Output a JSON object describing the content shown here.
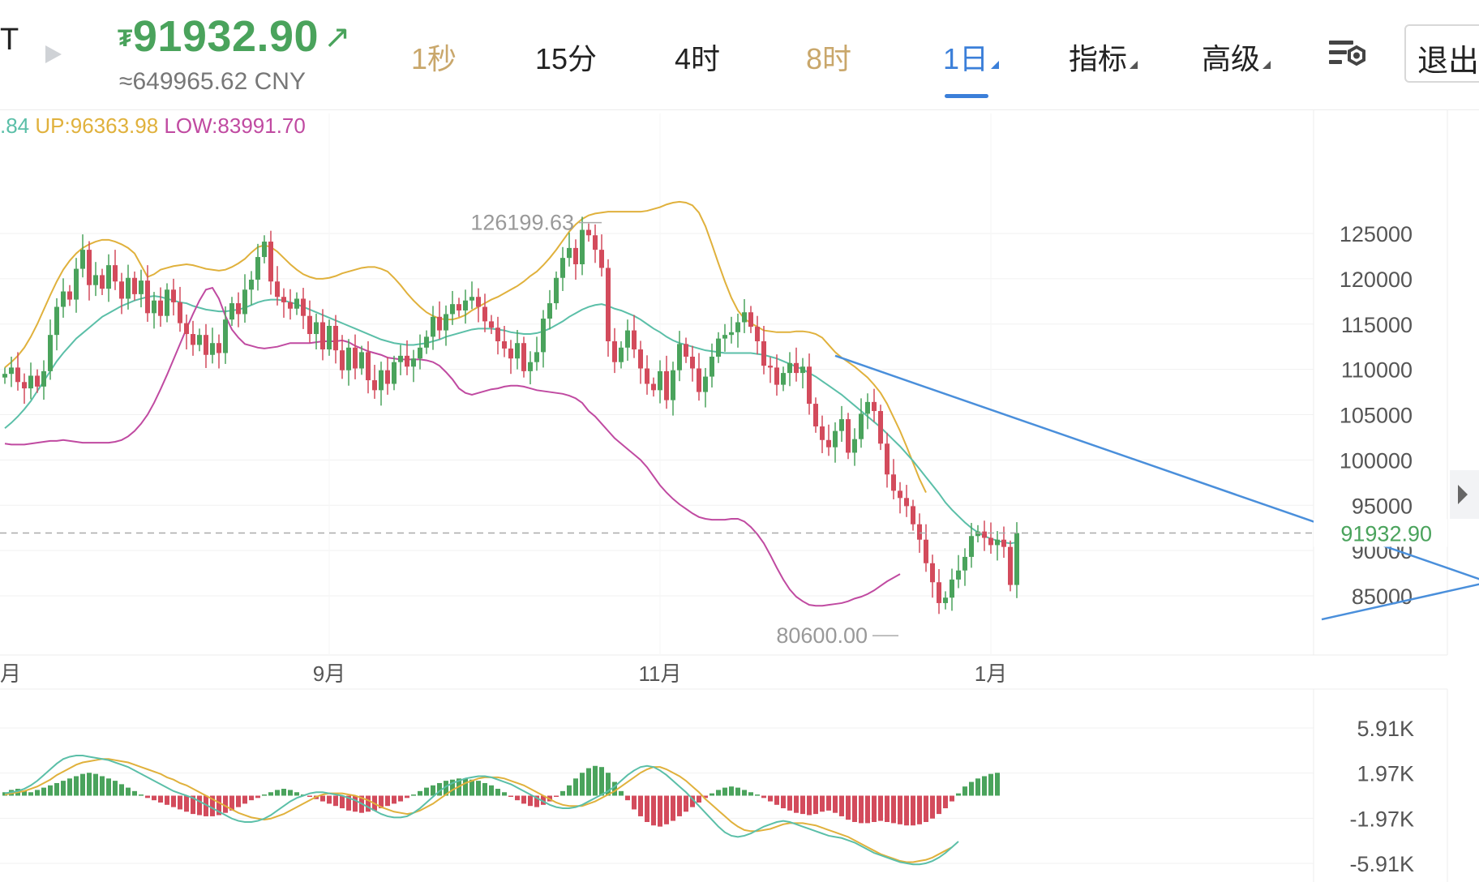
{
  "header": {
    "symbol_fragment": "T",
    "price": "91932.90",
    "price_currency_glyph": "₮",
    "price_arrow": "↗",
    "price_cny": "≈649965.62 CNY",
    "up_color": "#4aa35c",
    "down_color": "#d34b5c",
    "accent": "#3b7fd9"
  },
  "timeframes": [
    {
      "label": "1秒",
      "state": "dim"
    },
    {
      "label": "15分",
      "state": "normal"
    },
    {
      "label": "4时",
      "state": "normal"
    },
    {
      "label": "8时",
      "state": "dim"
    },
    {
      "label": "1日",
      "state": "active"
    }
  ],
  "menus": {
    "indicators": "指标",
    "advanced": "高级",
    "exit": "退出"
  },
  "legend": {
    "mb": ".84",
    "up": "UP:96363.98",
    "low": "LOW:83991.70"
  },
  "chart_data": [
    {
      "type": "candlestick",
      "title": "",
      "x_tick_labels": [
        "9月",
        "11月",
        "1月"
      ],
      "y_tick_labels": [
        "125000",
        "120000",
        "115000",
        "110000",
        "105000",
        "100000",
        "95000",
        "90000",
        "85000"
      ],
      "ylim": [
        80000,
        130000
      ],
      "grid": true,
      "current_price": 91932.9,
      "current_price_label": "91932.90",
      "high_annotation": {
        "label": "126199.63",
        "value": 126199.63
      },
      "low_annotation": {
        "label": "80600.00",
        "value": 80600.0
      },
      "closes": [
        109500,
        110200,
        108600,
        107900,
        109300,
        108100,
        109800,
        113800,
        116900,
        118600,
        117700,
        121100,
        123200,
        119300,
        120400,
        118900,
        121500,
        119700,
        117800,
        120100,
        118300,
        119800,
        116200,
        117600,
        115900,
        118800,
        117400,
        115100,
        113900,
        112700,
        113800,
        111600,
        112900,
        111800,
        115500,
        117300,
        116100,
        118800,
        119900,
        122400,
        124100,
        119700,
        118000,
        117400,
        116700,
        117800,
        115900,
        113900,
        115200,
        112200,
        114800,
        112100,
        109900,
        112400,
        110100,
        111900,
        108800,
        107700,
        109900,
        108400,
        110800,
        111500,
        110300,
        111200,
        112400,
        113600,
        115800,
        114300,
        116100,
        117200,
        116500,
        117600,
        118000,
        116900,
        115300,
        114600,
        113100,
        112300,
        111200,
        112900,
        109800,
        110800,
        111900,
        115600,
        117300,
        120100,
        122300,
        123400,
        121600,
        125400,
        124800,
        123200,
        121200,
        113100,
        110800,
        112400,
        114300,
        112200,
        110100,
        108400,
        107700,
        109800,
        106600,
        109900,
        112800,
        111400,
        110100,
        107500,
        109200,
        111400,
        113400,
        113800,
        114100,
        115200,
        116300,
        114700,
        113100,
        110400,
        110200,
        108300,
        109600,
        110700,
        109600,
        110300,
        106200,
        103700,
        102200,
        101400,
        103200,
        104500,
        100800,
        102300,
        105100,
        106400,
        105400,
        101800,
        98400,
        96600,
        95800,
        94900,
        92900,
        91200,
        88600,
        86500,
        84200,
        84800,
        86800,
        87800,
        89300,
        91600,
        92100,
        91400,
        90600,
        91200,
        90400,
        86200,
        91932.9
      ],
      "boll_mb": [
        103500,
        104100,
        104800,
        105600,
        106500,
        107600,
        108700,
        109800,
        110900,
        111800,
        112600,
        113400,
        114000,
        114600,
        115200,
        115800,
        116200,
        116600,
        117000,
        117300,
        117600,
        117800,
        118000,
        118100,
        118000,
        117800,
        117600,
        117400,
        117300,
        117000,
        116800,
        116600,
        116500,
        116400,
        116400,
        116500,
        116600,
        116800,
        117100,
        117400,
        117600,
        117700,
        117700,
        117600,
        117400,
        117200,
        116900,
        116600,
        116300,
        116000,
        115700,
        115400,
        115100,
        114800,
        114500,
        114200,
        113900,
        113600,
        113300,
        113100,
        112900,
        112800,
        112700,
        112700,
        112800,
        112900,
        113100,
        113300,
        113600,
        113800,
        114000,
        114200,
        114400,
        114500,
        114500,
        114500,
        114400,
        114300,
        114100,
        114000,
        113900,
        113900,
        114000,
        114200,
        114500,
        114900,
        115300,
        115800,
        116200,
        116600,
        116900,
        117100,
        117200,
        117000,
        116700,
        116500,
        116200,
        115900,
        115500,
        115000,
        114500,
        114100,
        113600,
        113200,
        112900,
        112700,
        112500,
        112300,
        112100,
        112000,
        111900,
        111800,
        111800,
        111800,
        111800,
        111800,
        111700,
        111600,
        111400,
        111200,
        110900,
        110600,
        110300,
        110000,
        109600,
        109200,
        108700,
        108200,
        107700,
        107200,
        106600,
        106000,
        105400,
        104800,
        104200,
        103600,
        102900,
        102200,
        101500,
        100700,
        99900,
        99000,
        98100,
        97200,
        96300,
        95300,
        94500,
        93800,
        93100,
        92500,
        92000,
        91600,
        91300,
        91100,
        90900,
        90800,
        90900
      ],
      "boll_up": [
        110200,
        110800,
        111500,
        112400,
        113600,
        115000,
        116600,
        118200,
        119700,
        121000,
        122000,
        122800,
        123400,
        123800,
        124100,
        124300,
        124300,
        124100,
        123800,
        123400,
        122800,
        121500,
        120200,
        120500,
        121000,
        121200,
        121400,
        121500,
        121600,
        121500,
        121300,
        121100,
        121000,
        120900,
        121000,
        121300,
        121700,
        122200,
        122900,
        123500,
        123700,
        123500,
        123000,
        122300,
        121600,
        121000,
        120500,
        120200,
        120000,
        120000,
        120100,
        120300,
        120600,
        120800,
        121000,
        121200,
        121300,
        121300,
        121100,
        120800,
        120100,
        119300,
        118400,
        117600,
        116900,
        116300,
        115900,
        115600,
        115500,
        115500,
        115700,
        116000,
        116500,
        116900,
        117300,
        117700,
        118000,
        118400,
        118800,
        119200,
        119700,
        120300,
        120800,
        121500,
        122300,
        123200,
        124200,
        125200,
        126000,
        126600,
        127000,
        127200,
        127300,
        127400,
        127400,
        127400,
        127400,
        127400,
        127400,
        127500,
        127700,
        127900,
        128200,
        128400,
        128500,
        128400,
        128100,
        127300,
        125800,
        123800,
        121700,
        119700,
        117900,
        116500,
        115600,
        115100,
        114700,
        114300,
        114200,
        114100,
        114100,
        114100,
        114200,
        114200,
        114100,
        113900,
        113500,
        112700,
        111900,
        111300,
        110800,
        110300,
        109700,
        109100,
        108300,
        107400,
        106200,
        104700,
        103200,
        101500,
        99700,
        97900,
        96400
      ],
      "boll_low": [
        101800,
        101700,
        101700,
        101700,
        101800,
        101900,
        102000,
        102100,
        102100,
        102200,
        102100,
        102000,
        101900,
        101900,
        101900,
        101900,
        101900,
        102000,
        102200,
        102600,
        103200,
        104000,
        105000,
        106300,
        107800,
        109400,
        111100,
        112800,
        114500,
        116100,
        117600,
        118800,
        119000,
        117800,
        115900,
        114400,
        113500,
        112800,
        112600,
        112400,
        112300,
        112400,
        112500,
        112700,
        112900,
        112900,
        112900,
        112900,
        113000,
        113100,
        113100,
        113100,
        113200,
        113000,
        112600,
        112300,
        112000,
        111800,
        111600,
        111300,
        111200,
        111100,
        111100,
        111100,
        111100,
        111000,
        110800,
        110400,
        109700,
        108900,
        107900,
        107400,
        107200,
        107400,
        107600,
        107800,
        107900,
        108100,
        108200,
        108200,
        108100,
        107900,
        107700,
        107600,
        107500,
        107400,
        107300,
        107100,
        106800,
        106300,
        105400,
        104800,
        104000,
        103200,
        102400,
        101800,
        101200,
        100600,
        100000,
        99200,
        98200,
        97200,
        96400,
        95700,
        95100,
        94600,
        94100,
        93700,
        93500,
        93400,
        93400,
        93400,
        93500,
        93500,
        93200,
        92600,
        91800,
        90800,
        89500,
        88100,
        86800,
        85700,
        84900,
        84400,
        84000,
        83900,
        83900,
        84000,
        84100,
        84200,
        84400,
        84700,
        84900,
        85200,
        85600,
        86100,
        86600,
        87000,
        87400
      ],
      "trendlines": [
        {
          "from": [
            128,
            111500
          ],
          "to": [
            240,
            83700
          ],
          "color": "#4a8fdb"
        },
        {
          "from": [
            203,
            82400
          ],
          "to": [
            290,
            96300
          ],
          "color": "#4a8fdb"
        },
        {
          "from": [
            236,
            90500
          ],
          "to": [
            247,
            96800
          ],
          "color": "#4a8fdb",
          "arrow": true
        }
      ]
    },
    {
      "type": "macd",
      "y_tick_labels": [
        "5.91K",
        "1.97K",
        "-1.97K",
        "-5.91K"
      ],
      "ylim": [
        -7000,
        7000
      ],
      "grid": true,
      "histogram": [
        300,
        500,
        600,
        400,
        300,
        500,
        700,
        900,
        1100,
        1300,
        1500,
        1700,
        1900,
        2000,
        1900,
        1700,
        1500,
        1300,
        1000,
        700,
        400,
        100,
        -200,
        -400,
        -600,
        -800,
        -1000,
        -1200,
        -1400,
        -1600,
        -1700,
        -1800,
        -1800,
        -1700,
        -1500,
        -1300,
        -1000,
        -700,
        -400,
        -200,
        100,
        300,
        500,
        600,
        500,
        300,
        100,
        -100,
        -300,
        -500,
        -700,
        -900,
        -1100,
        -1300,
        -1400,
        -1500,
        -1400,
        -1300,
        -1100,
        -900,
        -700,
        -500,
        -200,
        100,
        400,
        700,
        900,
        1100,
        1300,
        1400,
        1500,
        1500,
        1400,
        1300,
        1100,
        900,
        600,
        300,
        -100,
        -400,
        -700,
        -900,
        -1000,
        -800,
        -500,
        -100,
        400,
        900,
        1500,
        2000,
        2400,
        2600,
        2500,
        2000,
        1200,
        400,
        -400,
        -1200,
        -1800,
        -2300,
        -2600,
        -2700,
        -2500,
        -2200,
        -1800,
        -1400,
        -1000,
        -600,
        -200,
        200,
        500,
        700,
        800,
        700,
        500,
        300,
        100,
        -200,
        -500,
        -800,
        -1100,
        -1300,
        -1500,
        -1600,
        -1700,
        -1600,
        -1400,
        -1300,
        -1500,
        -1800,
        -2100,
        -2300,
        -2400,
        -2400,
        -2300,
        -2200,
        -2300,
        -2400,
        -2500,
        -2600,
        -2600,
        -2500,
        -2300,
        -2000,
        -1600,
        -1100,
        -500,
        200,
        800,
        1200,
        1500,
        1700,
        1900,
        2000
      ],
      "dif": [
        200,
        300,
        400,
        600,
        900,
        1300,
        1800,
        2300,
        2800,
        3200,
        3400,
        3500,
        3500,
        3400,
        3300,
        3200,
        3100,
        2900,
        2700,
        2500,
        2200,
        1900,
        1600,
        1300,
        1000,
        700,
        400,
        200,
        0,
        -200,
        -500,
        -800,
        -1100,
        -1400,
        -1700,
        -2000,
        -2200,
        -2300,
        -2300,
        -2200,
        -2000,
        -1700,
        -1300,
        -900,
        -500,
        -200,
        0,
        200,
        300,
        300,
        200,
        100,
        0,
        -200,
        -400,
        -700,
        -1000,
        -1300,
        -1600,
        -1800,
        -1900,
        -1900,
        -1800,
        -1500,
        -1100,
        -600,
        -100,
        400,
        800,
        1100,
        1300,
        1500,
        1600,
        1700,
        1700,
        1600,
        1400,
        1200,
        1000,
        700,
        400,
        100,
        -200,
        -500,
        -800,
        -1000,
        -1100,
        -1100,
        -1000,
        -800,
        -500,
        -200,
        100,
        400,
        800,
        1300,
        1800,
        2200,
        2500,
        2600,
        2500,
        2200,
        1800,
        1300,
        800,
        300,
        -300,
        -900,
        -1500,
        -2100,
        -2700,
        -3200,
        -3500,
        -3600,
        -3500,
        -3300,
        -3000,
        -2700,
        -2500,
        -2300,
        -2200,
        -2300,
        -2500,
        -2700,
        -2900,
        -3100,
        -3300,
        -3500,
        -3600,
        -3700,
        -3900,
        -4100,
        -4400,
        -4700,
        -5000,
        -5200,
        -5400,
        -5600,
        -5800,
        -5900,
        -6000,
        -6000,
        -5900,
        -5700,
        -5400,
        -5000,
        -4500,
        -4000
      ],
      "dea": [
        100,
        200,
        300,
        400,
        600,
        800,
        1100,
        1400,
        1800,
        2100,
        2400,
        2700,
        2900,
        3000,
        3100,
        3200,
        3200,
        3100,
        3000,
        2900,
        2700,
        2500,
        2300,
        2100,
        1900,
        1600,
        1400,
        1100,
        900,
        600,
        300,
        0,
        -300,
        -600,
        -900,
        -1200,
        -1500,
        -1700,
        -1900,
        -2000,
        -2100,
        -2000,
        -1800,
        -1600,
        -1300,
        -1000,
        -700,
        -400,
        -100,
        100,
        200,
        200,
        200,
        100,
        0,
        -200,
        -400,
        -700,
        -1000,
        -1200,
        -1400,
        -1500,
        -1600,
        -1500,
        -1300,
        -1000,
        -700,
        -300,
        100,
        500,
        800,
        1100,
        1300,
        1500,
        1600,
        1600,
        1600,
        1500,
        1300,
        1100,
        900,
        600,
        300,
        0,
        -300,
        -600,
        -800,
        -900,
        -900,
        -900,
        -700,
        -500,
        -200,
        100,
        400,
        800,
        1200,
        1600,
        2000,
        2300,
        2500,
        2500,
        2300,
        2000,
        1700,
        1300,
        800,
        300,
        -300,
        -800,
        -1300,
        -1800,
        -2300,
        -2700,
        -3000,
        -3100,
        -3100,
        -3000,
        -2900,
        -2700,
        -2500,
        -2400,
        -2400,
        -2400,
        -2500,
        -2600,
        -2800,
        -3000,
        -3200,
        -3400,
        -3600,
        -3900,
        -4200,
        -4500,
        -4800,
        -5100,
        -5300,
        -5500,
        -5700,
        -5800,
        -5800,
        -5700,
        -5600,
        -5400,
        -5100,
        -4800,
        -4500
      ]
    }
  ]
}
